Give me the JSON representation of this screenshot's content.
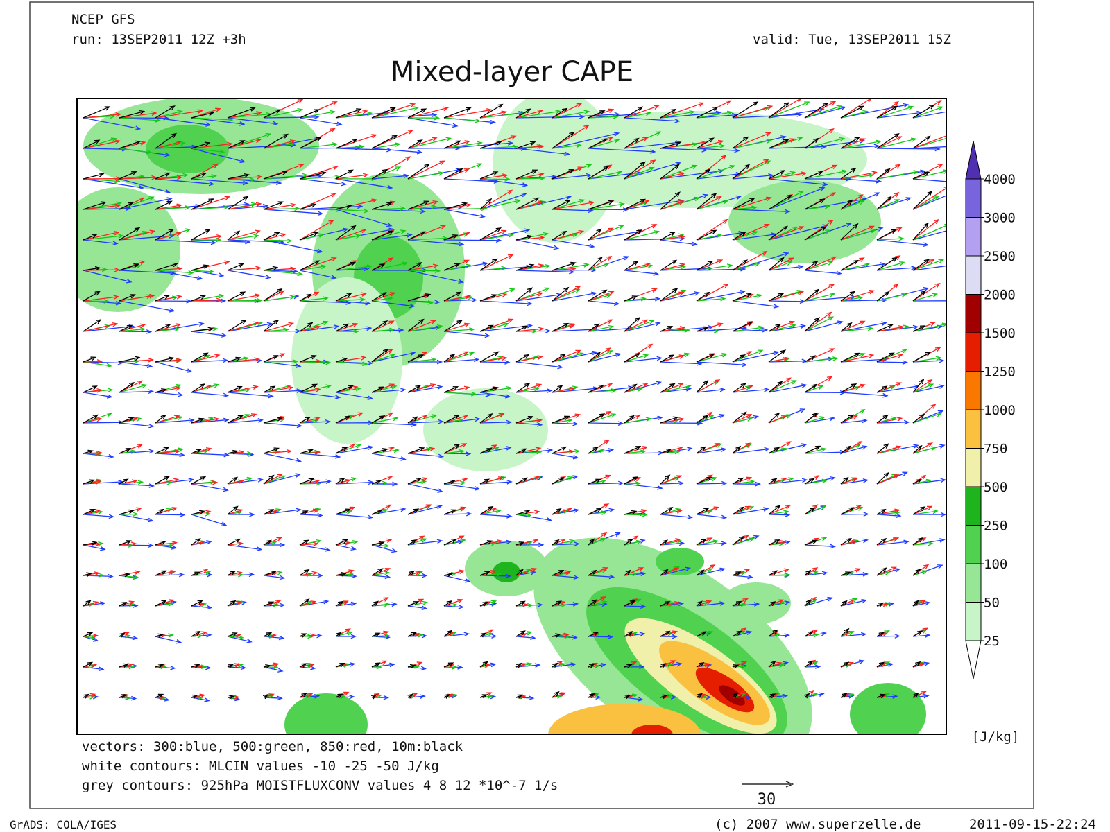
{
  "header": {
    "model": "NCEP GFS",
    "run": "run: 13SEP2011 12Z +3h",
    "valid": "valid: Tue, 13SEP2011 15Z",
    "title": "Mixed-layer CAPE"
  },
  "colorbar": {
    "levels": [
      25,
      50,
      100,
      250,
      500,
      750,
      1000,
      1250,
      1500,
      2000,
      2500,
      3000,
      4000
    ],
    "colors": [
      "#ffffff",
      "#c8f5c8",
      "#96e696",
      "#50d250",
      "#1eb41e",
      "#f0f0aa",
      "#fac040",
      "#fa7800",
      "#e61e00",
      "#a00000",
      "#dcdcf5",
      "#b4a0f0",
      "#7864dc",
      "#5030b0"
    ],
    "unit": "[J/kg]"
  },
  "legend": {
    "vectors": "vectors: 300:blue, 500:green, 850:red, 10m:black",
    "white_contours": "white contours: MLCIN values -10 -25 -50 J/kg",
    "grey_contours": "grey contours: 925hPa MOISTFLUXCONV values 4 8 12 *10^-7 1/s",
    "reference_vector": "30"
  },
  "footer": {
    "software": "GrADS: COLA/IGES",
    "copyright": "(c) 2007 www.superzelle.de",
    "timestamp": "2011-09-15-22:24"
  }
}
